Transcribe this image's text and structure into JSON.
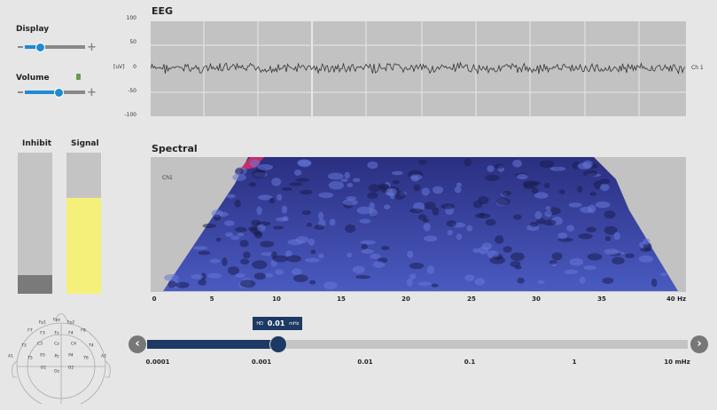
{
  "display": {
    "label": "Display",
    "level": 0.3
  },
  "volume": {
    "label": "Volume",
    "level": 0.55,
    "icon": "speaker-icon"
  },
  "eeg": {
    "title": "EEG",
    "unit": "[uV]",
    "yticks": [
      "100",
      "50",
      "0",
      "-50",
      "-100"
    ],
    "channel": "Ch 1"
  },
  "bars": {
    "inhibit": {
      "label": "Inhibit",
      "level": 0.13,
      "color": "#7a7a7a"
    },
    "signal": {
      "label": "Signal",
      "level": 0.68,
      "color": "#f5f07a"
    }
  },
  "spectral": {
    "title": "Spectral",
    "channel": "Ch1",
    "xticks": [
      "0",
      "5",
      "10",
      "15",
      "20",
      "25",
      "30",
      "35",
      "40 Hz"
    ]
  },
  "threshold": {
    "prefix": "HD",
    "value": "0.01",
    "unit": "mHz",
    "ticks": [
      "0.0001",
      "0.001",
      "0.01",
      "0.1",
      "1",
      "10 mHz"
    ],
    "position": 0.4,
    "fill_color": "#1c3a63"
  },
  "electrodes": [
    "Fpz",
    "Fp1",
    "Fp2",
    "F7",
    "F3",
    "Fz",
    "F4",
    "F8",
    "T3",
    "C3",
    "Cz",
    "C4",
    "T4",
    "A1",
    "A2",
    "T5",
    "P3",
    "Pz",
    "P4",
    "T6",
    "O1",
    "Oz",
    "O2"
  ]
}
